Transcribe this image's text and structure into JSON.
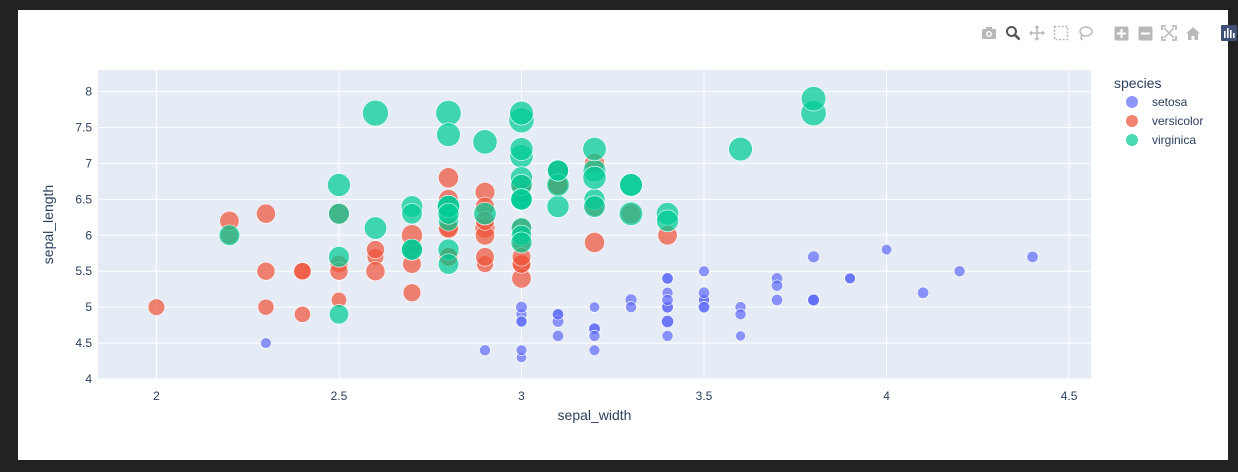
{
  "modebar": {
    "icons": [
      "camera-icon",
      "zoom-icon",
      "pan-icon",
      "box-select-icon",
      "lasso-select-icon",
      "zoom-in-icon",
      "zoom-out-icon",
      "autoscale-icon",
      "reset-axes-icon",
      "plotly-logo-icon"
    ]
  },
  "colors": {
    "plot_bg": "#e5ecf6",
    "grid": "#ffffff",
    "text": "#2a3f5f",
    "setosa": "#636efa",
    "versicolor": "#ef553b",
    "virginica": "#00cc96"
  },
  "chart_data": {
    "type": "scatter",
    "xlabel": "sepal_width",
    "ylabel": "sepal_length",
    "xlim": [
      1.84,
      4.56
    ],
    "ylim": [
      4.0,
      8.3
    ],
    "xticks": [
      2,
      2.5,
      3,
      3.5,
      4,
      4.5
    ],
    "xtick_labels": [
      "2",
      "2.5",
      "3",
      "3.5",
      "4",
      "4.5"
    ],
    "yticks": [
      4,
      4.5,
      5,
      5.5,
      6,
      6.5,
      7,
      7.5,
      8
    ],
    "ytick_labels": [
      "4",
      "4.5",
      "5",
      "5.5",
      "6",
      "6.5",
      "7",
      "7.5",
      "8"
    ],
    "grid": true,
    "marker_size_encodes": "petal_length",
    "legend": {
      "title": "species",
      "placement": "right",
      "entries": [
        "setosa",
        "versicolor",
        "virginica"
      ]
    },
    "series": [
      {
        "name": "setosa",
        "color": "#636efa",
        "points": [
          [
            3.5,
            5.1,
            1.4
          ],
          [
            3.0,
            4.9,
            1.4
          ],
          [
            3.2,
            4.7,
            1.3
          ],
          [
            3.1,
            4.6,
            1.5
          ],
          [
            3.6,
            5.0,
            1.4
          ],
          [
            3.9,
            5.4,
            1.7
          ],
          [
            3.4,
            4.6,
            1.4
          ],
          [
            3.4,
            5.0,
            1.5
          ],
          [
            2.9,
            4.4,
            1.4
          ],
          [
            3.1,
            4.9,
            1.5
          ],
          [
            3.7,
            5.4,
            1.5
          ],
          [
            3.4,
            4.8,
            1.6
          ],
          [
            3.0,
            4.8,
            1.4
          ],
          [
            3.0,
            4.3,
            1.1
          ],
          [
            4.0,
            5.8,
            1.2
          ],
          [
            4.4,
            5.7,
            1.5
          ],
          [
            3.9,
            5.4,
            1.3
          ],
          [
            3.5,
            5.1,
            1.4
          ],
          [
            3.8,
            5.7,
            1.7
          ],
          [
            3.8,
            5.1,
            1.5
          ],
          [
            3.4,
            5.4,
            1.7
          ],
          [
            3.7,
            5.1,
            1.5
          ],
          [
            3.6,
            4.6,
            1.0
          ],
          [
            3.3,
            5.1,
            1.7
          ],
          [
            3.4,
            4.8,
            1.9
          ],
          [
            3.0,
            5.0,
            1.6
          ],
          [
            3.4,
            5.0,
            1.6
          ],
          [
            3.5,
            5.2,
            1.5
          ],
          [
            3.4,
            5.2,
            1.4
          ],
          [
            3.2,
            4.7,
            1.6
          ],
          [
            3.1,
            4.8,
            1.6
          ],
          [
            3.4,
            5.4,
            1.5
          ],
          [
            4.1,
            5.2,
            1.5
          ],
          [
            4.2,
            5.5,
            1.4
          ],
          [
            3.1,
            4.9,
            1.5
          ],
          [
            3.2,
            5.0,
            1.2
          ],
          [
            3.5,
            5.5,
            1.3
          ],
          [
            3.6,
            4.9,
            1.4
          ],
          [
            3.0,
            4.4,
            1.3
          ],
          [
            3.4,
            5.1,
            1.5
          ],
          [
            3.5,
            5.0,
            1.3
          ],
          [
            2.3,
            4.5,
            1.3
          ],
          [
            3.2,
            4.4,
            1.3
          ],
          [
            3.5,
            5.0,
            1.6
          ],
          [
            3.8,
            5.1,
            1.9
          ],
          [
            3.0,
            4.8,
            1.4
          ],
          [
            3.8,
            5.1,
            1.6
          ],
          [
            3.2,
            4.6,
            1.4
          ],
          [
            3.7,
            5.3,
            1.5
          ],
          [
            3.3,
            5.0,
            1.4
          ]
        ]
      },
      {
        "name": "versicolor",
        "color": "#ef553b",
        "points": [
          [
            3.2,
            7.0,
            4.7
          ],
          [
            3.2,
            6.4,
            4.5
          ],
          [
            3.1,
            6.9,
            4.9
          ],
          [
            2.3,
            5.5,
            4.0
          ],
          [
            2.8,
            6.5,
            4.6
          ],
          [
            2.8,
            5.7,
            4.5
          ],
          [
            3.3,
            6.3,
            4.7
          ],
          [
            2.4,
            4.9,
            3.3
          ],
          [
            2.9,
            6.6,
            4.6
          ],
          [
            2.7,
            5.2,
            3.9
          ],
          [
            2.0,
            5.0,
            3.5
          ],
          [
            3.0,
            5.9,
            4.2
          ],
          [
            2.2,
            6.0,
            4.0
          ],
          [
            2.9,
            6.1,
            4.7
          ],
          [
            2.9,
            5.6,
            3.6
          ],
          [
            3.1,
            6.7,
            4.4
          ],
          [
            3.0,
            5.6,
            4.5
          ],
          [
            2.7,
            5.8,
            4.1
          ],
          [
            2.2,
            6.2,
            4.5
          ],
          [
            2.5,
            5.6,
            3.9
          ],
          [
            3.2,
            5.9,
            4.8
          ],
          [
            2.8,
            6.1,
            4.0
          ],
          [
            2.5,
            6.3,
            4.9
          ],
          [
            2.8,
            6.1,
            4.7
          ],
          [
            2.9,
            6.4,
            4.3
          ],
          [
            3.0,
            6.6,
            4.4
          ],
          [
            2.8,
            6.8,
            4.8
          ],
          [
            3.0,
            6.7,
            5.0
          ],
          [
            2.9,
            6.0,
            4.5
          ],
          [
            2.6,
            5.7,
            3.5
          ],
          [
            2.4,
            5.5,
            3.8
          ],
          [
            2.4,
            5.5,
            3.7
          ],
          [
            2.7,
            5.8,
            3.9
          ],
          [
            2.7,
            6.0,
            5.1
          ],
          [
            3.0,
            5.4,
            4.5
          ],
          [
            3.4,
            6.0,
            4.5
          ],
          [
            3.1,
            6.7,
            4.7
          ],
          [
            2.3,
            6.3,
            4.4
          ],
          [
            3.0,
            5.6,
            4.1
          ],
          [
            2.5,
            5.5,
            4.0
          ],
          [
            2.6,
            5.5,
            4.4
          ],
          [
            3.0,
            6.1,
            4.6
          ],
          [
            2.6,
            5.8,
            4.0
          ],
          [
            2.3,
            5.0,
            3.3
          ],
          [
            2.7,
            5.6,
            4.2
          ],
          [
            3.0,
            5.7,
            4.2
          ],
          [
            2.9,
            5.7,
            4.2
          ],
          [
            2.9,
            6.2,
            4.3
          ],
          [
            2.5,
            5.1,
            3.0
          ],
          [
            2.8,
            5.7,
            4.1
          ]
        ]
      },
      {
        "name": "virginica",
        "color": "#00cc96",
        "points": [
          [
            3.3,
            6.3,
            6.0
          ],
          [
            2.7,
            5.8,
            5.1
          ],
          [
            3.0,
            7.1,
            5.9
          ],
          [
            2.9,
            6.3,
            5.6
          ],
          [
            3.0,
            6.5,
            5.8
          ],
          [
            3.0,
            7.6,
            6.6
          ],
          [
            2.5,
            4.9,
            4.5
          ],
          [
            2.9,
            7.3,
            6.3
          ],
          [
            2.5,
            6.7,
            5.8
          ],
          [
            3.6,
            7.2,
            6.1
          ],
          [
            3.2,
            6.5,
            5.1
          ],
          [
            2.7,
            6.4,
            5.3
          ],
          [
            3.0,
            6.8,
            5.5
          ],
          [
            2.5,
            5.7,
            5.0
          ],
          [
            2.8,
            5.8,
            5.1
          ],
          [
            3.2,
            6.4,
            5.3
          ],
          [
            3.0,
            6.5,
            5.5
          ],
          [
            3.8,
            7.7,
            6.7
          ],
          [
            2.6,
            7.7,
            6.9
          ],
          [
            2.2,
            6.0,
            5.0
          ],
          [
            3.2,
            6.9,
            5.7
          ],
          [
            2.8,
            5.6,
            4.9
          ],
          [
            2.8,
            7.7,
            6.7
          ],
          [
            2.7,
            6.3,
            4.9
          ],
          [
            3.3,
            6.7,
            5.7
          ],
          [
            3.2,
            7.2,
            6.0
          ],
          [
            2.8,
            6.2,
            4.8
          ],
          [
            3.0,
            6.1,
            4.9
          ],
          [
            2.8,
            6.4,
            5.6
          ],
          [
            3.0,
            7.2,
            5.8
          ],
          [
            2.8,
            7.4,
            6.1
          ],
          [
            3.8,
            7.9,
            6.4
          ],
          [
            2.8,
            6.4,
            5.6
          ],
          [
            2.8,
            6.3,
            5.1
          ],
          [
            2.6,
            6.1,
            5.6
          ],
          [
            3.0,
            7.7,
            6.1
          ],
          [
            3.4,
            6.3,
            5.6
          ],
          [
            3.1,
            6.4,
            5.5
          ],
          [
            3.0,
            6.0,
            4.8
          ],
          [
            3.1,
            6.9,
            5.4
          ],
          [
            3.1,
            6.7,
            5.6
          ],
          [
            3.1,
            6.9,
            5.1
          ],
          [
            2.7,
            5.8,
            5.1
          ],
          [
            3.2,
            6.8,
            5.9
          ],
          [
            3.3,
            6.7,
            5.7
          ],
          [
            3.0,
            6.7,
            5.2
          ],
          [
            2.5,
            6.3,
            5.0
          ],
          [
            3.0,
            6.5,
            5.2
          ],
          [
            3.4,
            6.2,
            5.4
          ],
          [
            3.0,
            5.9,
            5.1
          ]
        ]
      }
    ]
  }
}
